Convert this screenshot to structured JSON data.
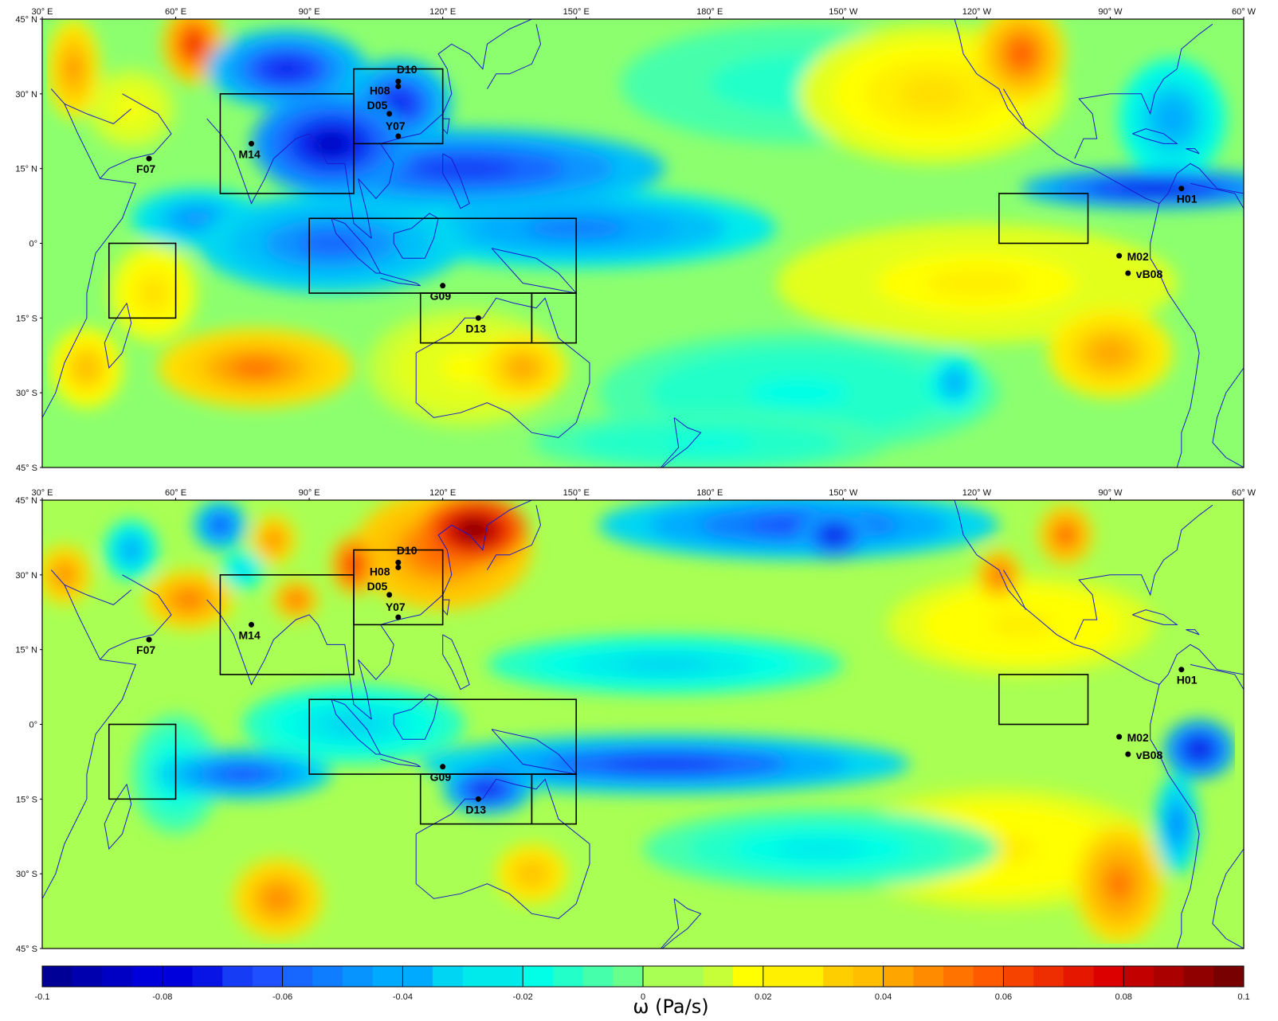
{
  "colors": {
    "strong_ascent": "#00008f",
    "ascent": "#1a56ff",
    "weak_ascent": "#00c8ff",
    "near_zero": "#8cff73",
    "weak_descent": "#ffff00",
    "descent": "#ffa000",
    "strong_descent": "#e60000",
    "max_descent": "#7f0000",
    "coast": "#1a1acc",
    "box": "#000000"
  },
  "axes": {
    "lon_ticks": [
      "30° E",
      "60° E",
      "90° E",
      "120° E",
      "150° E",
      "180° E",
      "150° W",
      "120° W",
      "90° W",
      "60° W"
    ],
    "lat_ticks": [
      "45° N",
      "30° N",
      "15° N",
      "0°",
      "15° S",
      "30° S",
      "45° S"
    ],
    "lon_range": [
      30,
      300
    ],
    "lat_range": [
      -45,
      45
    ]
  },
  "regions": [
    {
      "lon": [
        45,
        60
      ],
      "lat": [
        -15,
        0
      ]
    },
    {
      "lon": [
        70,
        100
      ],
      "lat": [
        10,
        30
      ]
    },
    {
      "lon": [
        100,
        120
      ],
      "lat": [
        20,
        35
      ]
    },
    {
      "lon": [
        90,
        150
      ],
      "lat": [
        -10,
        5
      ]
    },
    {
      "lon": [
        115,
        140
      ],
      "lat": [
        -20,
        -10
      ]
    },
    {
      "lon": [
        140,
        150
      ],
      "lat": [
        -20,
        -10
      ]
    },
    {
      "lon": [
        245,
        265
      ],
      "lat": [
        0,
        10
      ]
    }
  ],
  "sites": [
    {
      "id": "D10",
      "lon": 110,
      "lat": 32.5,
      "label_dx": -2,
      "label_dy": -10
    },
    {
      "id": "H08",
      "lon": 110,
      "lat": 31.5,
      "label_dx": -36,
      "label_dy": 10
    },
    {
      "id": "D05",
      "lon": 108,
      "lat": 26,
      "label_dx": -28,
      "label_dy": -6
    },
    {
      "id": "Y07",
      "lon": 110,
      "lat": 21.5,
      "label_dx": -16,
      "label_dy": -8
    },
    {
      "id": "M14",
      "lon": 77,
      "lat": 20,
      "label_dx": -16,
      "label_dy": 18
    },
    {
      "id": "F07",
      "lon": 54,
      "lat": 17,
      "label_dx": -16,
      "label_dy": 18
    },
    {
      "id": "G09",
      "lon": 120,
      "lat": -8.5,
      "label_dx": -16,
      "label_dy": 18
    },
    {
      "id": "D13",
      "lon": 128,
      "lat": -15,
      "label_dx": -16,
      "label_dy": 18
    },
    {
      "id": "H01",
      "lon": 286,
      "lat": 11,
      "label_dx": -6,
      "label_dy": 18
    },
    {
      "id": "M02",
      "lon": 272,
      "lat": -2.5,
      "label_dx": 10,
      "label_dy": 6
    },
    {
      "id": "vB08",
      "lon": 274,
      "lat": -6,
      "label_dx": 10,
      "label_dy": 6
    }
  ],
  "panels": [
    {
      "name": "top",
      "field": {
        "background": 0,
        "blobs": [
          {
            "lon": 64,
            "lat": 40,
            "rx": 7,
            "ry": 8,
            "v": 0.07
          },
          {
            "lon": 37,
            "lat": 35,
            "rx": 6,
            "ry": 10,
            "v": 0.05
          },
          {
            "lon": 50,
            "lat": 27,
            "rx": 10,
            "ry": 8,
            "v": 0.02
          },
          {
            "lon": 85,
            "lat": 35,
            "rx": 18,
            "ry": 8,
            "v": -0.07
          },
          {
            "lon": 95,
            "lat": 20,
            "rx": 18,
            "ry": 10,
            "v": -0.085
          },
          {
            "lon": 110,
            "lat": 28,
            "rx": 12,
            "ry": 9,
            "v": -0.07
          },
          {
            "lon": 125,
            "lat": 15,
            "rx": 45,
            "ry": 8,
            "v": -0.065
          },
          {
            "lon": 150,
            "lat": 3,
            "rx": 45,
            "ry": 8,
            "v": -0.05
          },
          {
            "lon": 95,
            "lat": 0,
            "rx": 30,
            "ry": 10,
            "v": -0.055
          },
          {
            "lon": 65,
            "lat": 5,
            "rx": 15,
            "ry": 6,
            "v": -0.045
          },
          {
            "lon": 280,
            "lat": 11,
            "rx": 30,
            "ry": 4,
            "v": -0.075
          },
          {
            "lon": 284,
            "lat": 25,
            "rx": 12,
            "ry": 12,
            "v": -0.04
          },
          {
            "lon": 250,
            "lat": 38,
            "rx": 10,
            "ry": 10,
            "v": 0.06
          },
          {
            "lon": 230,
            "lat": 30,
            "rx": 30,
            "ry": 14,
            "v": 0.03
          },
          {
            "lon": 240,
            "lat": -8,
            "rx": 45,
            "ry": 12,
            "v": 0.025
          },
          {
            "lon": 270,
            "lat": -22,
            "rx": 14,
            "ry": 9,
            "v": 0.045
          },
          {
            "lon": 78,
            "lat": -25,
            "rx": 22,
            "ry": 8,
            "v": 0.055
          },
          {
            "lon": 138,
            "lat": -25,
            "rx": 10,
            "ry": 7,
            "v": 0.045
          },
          {
            "lon": 125,
            "lat": -25,
            "rx": 22,
            "ry": 12,
            "v": 0.02
          },
          {
            "lon": 40,
            "lat": -25,
            "rx": 8,
            "ry": 8,
            "v": 0.04
          },
          {
            "lon": 200,
            "lat": -30,
            "rx": 45,
            "ry": 12,
            "v": -0.02
          },
          {
            "lon": 235,
            "lat": -28,
            "rx": 6,
            "ry": 6,
            "v": -0.04
          },
          {
            "lon": 180,
            "lat": -40,
            "rx": 40,
            "ry": 6,
            "v": -0.02
          },
          {
            "lon": 55,
            "lat": -10,
            "rx": 10,
            "ry": 10,
            "v": 0.03
          },
          {
            "lon": 200,
            "lat": 32,
            "rx": 40,
            "ry": 12,
            "v": -0.015
          }
        ]
      }
    },
    {
      "name": "bottom",
      "field": {
        "background": 0.005,
        "blobs": [
          {
            "lon": 127,
            "lat": 39,
            "rx": 12,
            "ry": 7,
            "v": 0.1
          },
          {
            "lon": 120,
            "lat": 35,
            "rx": 20,
            "ry": 12,
            "v": 0.06
          },
          {
            "lon": 100,
            "lat": 32,
            "rx": 5,
            "ry": 6,
            "v": 0.07
          },
          {
            "lon": 87,
            "lat": 25,
            "rx": 5,
            "ry": 4,
            "v": 0.06
          },
          {
            "lon": 63,
            "lat": 25,
            "rx": 10,
            "ry": 6,
            "v": 0.055
          },
          {
            "lon": 35,
            "lat": 30,
            "rx": 6,
            "ry": 6,
            "v": 0.05
          },
          {
            "lon": 70,
            "lat": 40,
            "rx": 6,
            "ry": 5,
            "v": -0.06
          },
          {
            "lon": 82,
            "lat": 37,
            "rx": 5,
            "ry": 5,
            "v": 0.05
          },
          {
            "lon": 75,
            "lat": 31,
            "rx": 5,
            "ry": 4,
            "v": -0.03
          },
          {
            "lon": 100,
            "lat": 0,
            "rx": 25,
            "ry": 8,
            "v": -0.03
          },
          {
            "lon": 170,
            "lat": -8,
            "rx": 55,
            "ry": 6,
            "v": -0.065
          },
          {
            "lon": 75,
            "lat": -10,
            "rx": 20,
            "ry": 5,
            "v": -0.06
          },
          {
            "lon": 130,
            "lat": -13,
            "rx": 10,
            "ry": 5,
            "v": -0.075
          },
          {
            "lon": 170,
            "lat": 12,
            "rx": 40,
            "ry": 6,
            "v": -0.03
          },
          {
            "lon": 200,
            "lat": 40,
            "rx": 45,
            "ry": 7,
            "v": -0.06
          },
          {
            "lon": 208,
            "lat": 38,
            "rx": 8,
            "ry": 5,
            "v": -0.08
          },
          {
            "lon": 245,
            "lat": 30,
            "rx": 5,
            "ry": 5,
            "v": 0.06
          },
          {
            "lon": 260,
            "lat": 38,
            "rx": 6,
            "ry": 6,
            "v": 0.06
          },
          {
            "lon": 250,
            "lat": 20,
            "rx": 30,
            "ry": 10,
            "v": 0.025
          },
          {
            "lon": 290,
            "lat": -5,
            "rx": 8,
            "ry": 6,
            "v": -0.08
          },
          {
            "lon": 285,
            "lat": -20,
            "rx": 5,
            "ry": 10,
            "v": -0.05
          },
          {
            "lon": 272,
            "lat": -32,
            "rx": 10,
            "ry": 12,
            "v": 0.055
          },
          {
            "lon": 245,
            "lat": -25,
            "rx": 35,
            "ry": 12,
            "v": 0.025
          },
          {
            "lon": 83,
            "lat": -35,
            "rx": 10,
            "ry": 8,
            "v": 0.05
          },
          {
            "lon": 140,
            "lat": -30,
            "rx": 8,
            "ry": 6,
            "v": 0.04
          },
          {
            "lon": 205,
            "lat": -25,
            "rx": 40,
            "ry": 8,
            "v": -0.025
          },
          {
            "lon": 60,
            "lat": -10,
            "rx": 10,
            "ry": 12,
            "v": -0.025
          },
          {
            "lon": 50,
            "lat": 35,
            "rx": 6,
            "ry": 6,
            "v": -0.04
          }
        ]
      }
    }
  ],
  "colorbar": {
    "min": -0.1,
    "max": 0.1,
    "ticks": [
      "-0.1",
      "-0.08",
      "-0.06",
      "-0.04",
      "-0.02",
      "0",
      "0.02",
      "0.04",
      "0.06",
      "0.08",
      "0.1"
    ],
    "title": "ω (Pa/s)"
  }
}
